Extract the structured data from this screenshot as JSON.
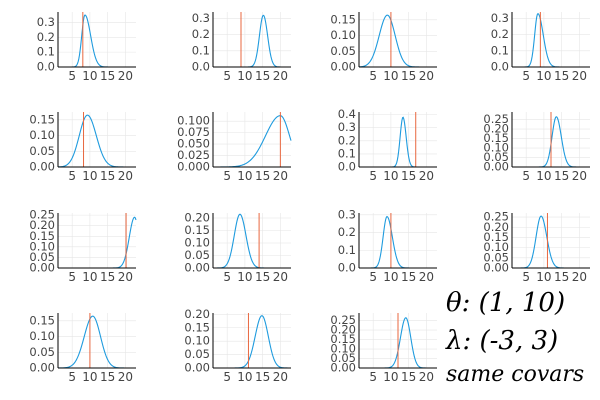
{
  "colors": {
    "density": "#1f9bde",
    "marker": "#e8673f",
    "grid": "#e6e6e6",
    "axis": "#000000"
  },
  "handwritten": {
    "line1": "θ: (1, 10)",
    "line2": "λ: (-3, 3)",
    "line3": "same covars"
  },
  "chart_data": [
    {
      "type": "line",
      "xlim": [
        1,
        23
      ],
      "ylim": [
        0,
        0.37
      ],
      "xticks": [
        5,
        10,
        15,
        20
      ],
      "xtick_labels": [
        "5",
        "10",
        "15",
        "20"
      ],
      "yticks": [
        0,
        0.1,
        0.2,
        0.3
      ],
      "ytick_labels": [
        "0.0",
        "0.1",
        "0.2",
        "0.3"
      ],
      "grid": true,
      "density": {
        "mode": 8.6,
        "peak": 0.35,
        "left_width": 0.9,
        "right_width": 1.6
      },
      "marker_x": 8.0
    },
    {
      "type": "line",
      "xlim": [
        1,
        23
      ],
      "ylim": [
        0,
        0.34
      ],
      "xticks": [
        5,
        10,
        15,
        20
      ],
      "xtick_labels": [
        "5",
        "10",
        "15",
        "20"
      ],
      "yticks": [
        0,
        0.1,
        0.2,
        0.3
      ],
      "ytick_labels": [
        "0.0",
        "0.1",
        "0.2",
        "0.3"
      ],
      "grid": true,
      "density": {
        "mode": 15.2,
        "peak": 0.32,
        "left_width": 1.1,
        "right_width": 1.2
      },
      "marker_x": 8.9
    },
    {
      "type": "line",
      "xlim": [
        1,
        23
      ],
      "ylim": [
        0,
        0.175
      ],
      "xticks": [
        5,
        10,
        15,
        20
      ],
      "xtick_labels": [
        "5",
        "10",
        "15",
        "20"
      ],
      "yticks": [
        0,
        0.05,
        0.1,
        0.15
      ],
      "ytick_labels": [
        "0.00",
        "0.05",
        "0.10",
        "0.15"
      ],
      "grid": true,
      "density": {
        "mode": 9.0,
        "peak": 0.165,
        "left_width": 2.3,
        "right_width": 2.2
      },
      "marker_x": 10.0
    },
    {
      "type": "line",
      "xlim": [
        1,
        23
      ],
      "ylim": [
        0,
        0.34
      ],
      "xticks": [
        5,
        10,
        15,
        20
      ],
      "xtick_labels": [
        "5",
        "10",
        "15",
        "20"
      ],
      "yticks": [
        0,
        0.1,
        0.2,
        0.3
      ],
      "ytick_labels": [
        "0.0",
        "0.1",
        "0.2",
        "0.3"
      ],
      "grid": true,
      "density": {
        "mode": 8.3,
        "peak": 0.33,
        "left_width": 0.9,
        "right_width": 1.5
      },
      "marker_x": 9.0
    },
    {
      "type": "line",
      "xlim": [
        1,
        23
      ],
      "ylim": [
        0,
        0.175
      ],
      "xticks": [
        5,
        10,
        15,
        20
      ],
      "xtick_labels": [
        "5",
        "10",
        "15",
        "20"
      ],
      "yticks": [
        0,
        0.05,
        0.1,
        0.15
      ],
      "ytick_labels": [
        "0.00",
        "0.05",
        "0.10",
        "0.15"
      ],
      "grid": true,
      "density": {
        "mode": 9.3,
        "peak": 0.165,
        "left_width": 2.3,
        "right_width": 2.5
      },
      "marker_x": 8.2
    },
    {
      "type": "line",
      "xlim": [
        1,
        23
      ],
      "ylim": [
        0,
        0.12
      ],
      "xticks": [
        5,
        10,
        15,
        20
      ],
      "xtick_labels": [
        "5",
        "10",
        "15",
        "20"
      ],
      "yticks": [
        0,
        0.025,
        0.05,
        0.075,
        0.1
      ],
      "ytick_labels": [
        "0.000",
        "0.025",
        "0.050",
        "0.075",
        "0.100"
      ],
      "grid": true,
      "density": {
        "mode": 20.0,
        "peak": 0.112,
        "left_width": 4.2,
        "right_width": 2.6
      },
      "marker_x": 20.0
    },
    {
      "type": "line",
      "xlim": [
        1,
        23
      ],
      "ylim": [
        0,
        0.42
      ],
      "xticks": [
        5,
        10,
        15,
        20
      ],
      "xtick_labels": [
        "5",
        "10",
        "15",
        "20"
      ],
      "yticks": [
        0,
        0.1,
        0.2,
        0.3,
        0.4
      ],
      "ytick_labels": [
        "0.0",
        "0.1",
        "0.2",
        "0.3",
        "0.4"
      ],
      "grid": true,
      "density": {
        "mode": 13.4,
        "peak": 0.38,
        "left_width": 0.8,
        "right_width": 0.9
      },
      "marker_x": 17.0
    },
    {
      "type": "line",
      "xlim": [
        1,
        23
      ],
      "ylim": [
        0,
        0.29
      ],
      "xticks": [
        5,
        10,
        15,
        20
      ],
      "xtick_labels": [
        "5",
        "10",
        "15",
        "20"
      ],
      "yticks": [
        0,
        0.05,
        0.1,
        0.15,
        0.2,
        0.25
      ],
      "ytick_labels": [
        "0.00",
        "0.05",
        "0.10",
        "0.15",
        "0.20",
        "0.25"
      ],
      "grid": true,
      "density": {
        "mode": 13.5,
        "peak": 0.265,
        "left_width": 1.2,
        "right_width": 1.4
      },
      "marker_x": 12.0
    },
    {
      "type": "line",
      "xlim": [
        1,
        23
      ],
      "ylim": [
        0,
        0.26
      ],
      "xticks": [
        5,
        10,
        15,
        20
      ],
      "xtick_labels": [
        "5",
        "10",
        "15",
        "20"
      ],
      "yticks": [
        0,
        0.05,
        0.1,
        0.15,
        0.2,
        0.25
      ],
      "ytick_labels": [
        "0.00",
        "0.05",
        "0.10",
        "0.15",
        "0.20",
        "0.25"
      ],
      "grid": true,
      "density": {
        "mode": 22.6,
        "peak": 0.24,
        "left_width": 1.5,
        "right_width": 1.2
      },
      "marker_x": 20.2
    },
    {
      "type": "line",
      "xlim": [
        1,
        23
      ],
      "ylim": [
        0,
        0.22
      ],
      "xticks": [
        5,
        10,
        15,
        20
      ],
      "xtick_labels": [
        "5",
        "10",
        "15",
        "20"
      ],
      "yticks": [
        0,
        0.05,
        0.1,
        0.15,
        0.2
      ],
      "ytick_labels": [
        "0.00",
        "0.05",
        "0.10",
        "0.15",
        "0.20"
      ],
      "grid": true,
      "density": {
        "mode": 8.6,
        "peak": 0.215,
        "left_width": 1.6,
        "right_width": 1.7
      },
      "marker_x": 14.0
    },
    {
      "type": "line",
      "xlim": [
        1,
        23
      ],
      "ylim": [
        0,
        0.31
      ],
      "xticks": [
        5,
        10,
        15,
        20
      ],
      "xtick_labels": [
        "5",
        "10",
        "15",
        "20"
      ],
      "yticks": [
        0,
        0.1,
        0.2,
        0.3
      ],
      "ytick_labels": [
        "0.0",
        "0.1",
        "0.2",
        "0.3"
      ],
      "grid": true,
      "density": {
        "mode": 8.9,
        "peak": 0.29,
        "left_width": 1.1,
        "right_width": 1.5
      },
      "marker_x": 10.0
    },
    {
      "type": "line",
      "xlim": [
        1,
        23
      ],
      "ylim": [
        0,
        0.27
      ],
      "xticks": [
        5,
        10,
        15,
        20
      ],
      "xtick_labels": [
        "5",
        "10",
        "15",
        "20"
      ],
      "yticks": [
        0,
        0.05,
        0.1,
        0.15,
        0.2,
        0.25
      ],
      "ytick_labels": [
        "0.00",
        "0.05",
        "0.10",
        "0.15",
        "0.20",
        "0.25"
      ],
      "grid": true,
      "density": {
        "mode": 9.2,
        "peak": 0.255,
        "left_width": 1.4,
        "right_width": 1.6
      },
      "marker_x": 11.0
    },
    {
      "type": "line",
      "xlim": [
        1,
        23
      ],
      "ylim": [
        0,
        0.175
      ],
      "xticks": [
        5,
        10,
        15,
        20
      ],
      "xtick_labels": [
        "5",
        "10",
        "15",
        "20"
      ],
      "yticks": [
        0,
        0.05,
        0.1,
        0.15
      ],
      "ytick_labels": [
        "0.00",
        "0.05",
        "0.10",
        "0.15"
      ],
      "grid": true,
      "density": {
        "mode": 10.8,
        "peak": 0.165,
        "left_width": 2.4,
        "right_width": 2.2
      },
      "marker_x": 10.0
    },
    {
      "type": "line",
      "xlim": [
        1,
        23
      ],
      "ylim": [
        0,
        0.205
      ],
      "xticks": [
        5,
        10,
        15,
        20
      ],
      "xtick_labels": [
        "5",
        "10",
        "15",
        "20"
      ],
      "yticks": [
        0,
        0.05,
        0.1,
        0.15,
        0.2
      ],
      "ytick_labels": [
        "0.00",
        "0.05",
        "0.10",
        "0.15",
        "0.20"
      ],
      "grid": true,
      "density": {
        "mode": 14.8,
        "peak": 0.195,
        "left_width": 1.9,
        "right_width": 1.8
      },
      "marker_x": 11.0
    },
    {
      "type": "line",
      "xlim": [
        1,
        23
      ],
      "ylim": [
        0,
        0.29
      ],
      "xticks": [
        5,
        10,
        15,
        20
      ],
      "xtick_labels": [
        "5",
        "10",
        "15",
        "20"
      ],
      "yticks": [
        0,
        0.05,
        0.1,
        0.15,
        0.2,
        0.25
      ],
      "ytick_labels": [
        "0.00",
        "0.05",
        "0.10",
        "0.15",
        "0.20",
        "0.25"
      ],
      "grid": true,
      "density": {
        "mode": 14.2,
        "peak": 0.265,
        "left_width": 1.5,
        "right_width": 1.4
      },
      "marker_x": 12.0
    }
  ]
}
